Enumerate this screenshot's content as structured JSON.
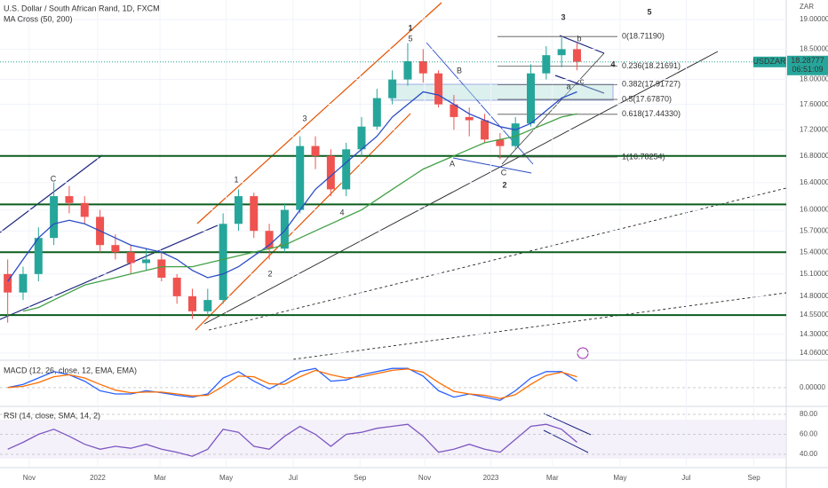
{
  "chart_data": [
    {
      "type": "candlestick",
      "title": "U.S. Dollar / South African Rand, 1D, FXCM",
      "indicator": "MA Cross (50, 200)",
      "currency": "ZAR",
      "symbol": "USDZAR",
      "last_price": 18.28777,
      "countdown": "06:51:09",
      "log_scale": true,
      "grid": true,
      "up_color": "#26a69a",
      "down_color": "#ef5350",
      "open": [
        15.1,
        14.85,
        15.1,
        15.6,
        16.2,
        16.1,
        15.9,
        15.5,
        15.4,
        15.25,
        15.3,
        15.05,
        14.8,
        14.6,
        14.75,
        15.8,
        16.2,
        15.7,
        15.45,
        16.0,
        16.95,
        16.8,
        16.3,
        16.9,
        17.25,
        17.7,
        18.0,
        18.3,
        18.1,
        17.6,
        17.4,
        17.35,
        17.05,
        16.95,
        17.3,
        18.1,
        18.4,
        18.5
      ],
      "high": [
        15.3,
        15.2,
        15.75,
        16.4,
        16.35,
        16.2,
        16.0,
        15.65,
        15.5,
        15.45,
        15.4,
        15.1,
        14.9,
        14.9,
        15.95,
        16.3,
        16.25,
        15.8,
        16.1,
        17.1,
        17.1,
        16.9,
        17.0,
        17.4,
        17.85,
        18.15,
        18.6,
        18.5,
        18.15,
        17.75,
        17.55,
        17.45,
        17.15,
        17.4,
        18.25,
        18.55,
        18.7,
        18.6
      ],
      "low": [
        14.45,
        14.75,
        15.0,
        15.5,
        15.95,
        15.8,
        15.4,
        15.3,
        15.1,
        15.15,
        15.0,
        14.7,
        14.5,
        14.55,
        14.7,
        15.7,
        15.6,
        15.3,
        15.4,
        15.95,
        16.6,
        16.2,
        16.2,
        16.8,
        17.2,
        17.6,
        17.9,
        17.95,
        17.55,
        17.2,
        17.1,
        17.0,
        16.75,
        16.9,
        17.25,
        18.0,
        18.2,
        18.15
      ],
      "close": [
        14.85,
        15.1,
        15.6,
        16.2,
        16.1,
        15.9,
        15.5,
        15.4,
        15.25,
        15.3,
        15.05,
        14.8,
        14.6,
        14.75,
        15.8,
        16.2,
        15.7,
        15.45,
        16.0,
        16.95,
        16.8,
        16.3,
        16.9,
        17.25,
        17.7,
        18.0,
        18.3,
        18.1,
        17.6,
        17.4,
        17.35,
        17.05,
        16.95,
        17.3,
        18.1,
        18.4,
        18.5,
        18.29
      ],
      "ma": [
        {
          "color": "#2a4cc5",
          "values": [
            15.0,
            15.3,
            15.6,
            15.8,
            15.85,
            15.8,
            15.7,
            15.6,
            15.5,
            15.45,
            15.4,
            15.3,
            15.15,
            15.05,
            15.1,
            15.2,
            15.35,
            15.5,
            15.7,
            16.0,
            16.3,
            16.5,
            16.7,
            16.9,
            17.1,
            17.4,
            17.6,
            17.8,
            17.75,
            17.6,
            17.45,
            17.35,
            17.25,
            17.2,
            17.3,
            17.5,
            17.7,
            17.8
          ]
        },
        {
          "color": "#43a047",
          "values": [
            null,
            14.6,
            14.65,
            14.75,
            14.85,
            14.95,
            15.0,
            15.05,
            15.1,
            15.15,
            15.2,
            15.2,
            15.2,
            15.25,
            15.3,
            15.35,
            15.4,
            15.45,
            15.5,
            15.6,
            15.7,
            15.8,
            15.9,
            16.0,
            16.15,
            16.3,
            16.45,
            16.6,
            16.7,
            16.8,
            16.9,
            17.0,
            17.05,
            17.1,
            17.2,
            17.3,
            17.4,
            17.45
          ]
        }
      ],
      "xlim": [
        -0.5,
        50.6
      ],
      "xticks": [
        {
          "value": 1.4,
          "label": "Nov"
        },
        {
          "value": 5.85,
          "label": "2022"
        },
        {
          "value": 9.9,
          "label": "Mar"
        },
        {
          "value": 14.2,
          "label": "May"
        },
        {
          "value": 18.55,
          "label": "Jul"
        },
        {
          "value": 22.9,
          "label": "Sep"
        },
        {
          "value": 27.1,
          "label": "Nov"
        },
        {
          "value": 31.4,
          "label": "2023"
        },
        {
          "value": 35.4,
          "label": "Mar"
        },
        {
          "value": 39.8,
          "label": "May"
        },
        {
          "value": 44.1,
          "label": "Jul"
        },
        {
          "value": 48.5,
          "label": "Sep"
        }
      ],
      "ylim": [
        13.98,
        19.34
      ],
      "yticks": [
        {
          "value": 19,
          "label": "19.00000"
        },
        {
          "value": 18.5,
          "label": "18.50000"
        },
        {
          "value": 18,
          "label": "18.00000"
        },
        {
          "value": 17.6,
          "label": "17.60000"
        },
        {
          "value": 17.2,
          "label": "17.20000"
        },
        {
          "value": 16.8,
          "label": "16.80000"
        },
        {
          "value": 16.4,
          "label": "16.40000"
        },
        {
          "value": 16,
          "label": "16.00000"
        },
        {
          "value": 15.7,
          "label": "15.70000"
        },
        {
          "value": 15.4,
          "label": "15.40000"
        },
        {
          "value": 15.1,
          "label": "15.10000"
        },
        {
          "value": 14.8,
          "label": "14.80000"
        },
        {
          "value": 14.55,
          "label": "14.55000"
        },
        {
          "value": 14.3,
          "label": "14.30000"
        },
        {
          "value": 14.06,
          "label": "14.06000"
        }
      ],
      "fib_levels": [
        {
          "value": 18.7119,
          "label": "0(18.71190)"
        },
        {
          "value": 18.21691,
          "label": "0.236(18.21691)"
        },
        {
          "value": 17.91727,
          "label": "0.382(17.91727)"
        },
        {
          "value": 17.6787,
          "label": "0.5(17.67870)"
        },
        {
          "value": 17.4433,
          "label": "0.618(17.44330)"
        },
        {
          "value": 16.78254,
          "label": "1(16.78254)"
        }
      ],
      "support_levels": {
        "color": "#0b5d1e",
        "values": [
          16.8,
          16.08,
          15.4,
          14.55
        ]
      },
      "wave_labels": [
        {
          "text": "1",
          "color": "#8b1a1a"
        },
        {
          "text": "2",
          "color": "#8b1a1a"
        },
        {
          "text": "3",
          "color": "#8b1a1a"
        },
        {
          "text": "4",
          "color": "#8b1a1a"
        },
        {
          "text": "5",
          "color": "#8b1a1a"
        },
        {
          "text": "1",
          "color": "#e65100"
        },
        {
          "text": "2",
          "color": "#e65100"
        },
        {
          "text": "3",
          "color": "#e65100"
        },
        {
          "text": "4",
          "color": "#e65100"
        },
        {
          "text": "5",
          "color": "#e65100"
        },
        {
          "text": "A",
          "color": "#2a4cc5"
        },
        {
          "text": "B",
          "color": "#2a4cc5"
        },
        {
          "text": "C",
          "color": "#2a4cc5"
        },
        {
          "text": "C",
          "color": "#2a4cc5"
        },
        {
          "text": "a",
          "color": "#2a4cc5"
        },
        {
          "text": "b",
          "color": "#2a4cc5"
        },
        {
          "text": "c",
          "color": "#2a4cc5"
        }
      ]
    },
    {
      "type": "line",
      "title": "MACD (12, 26, close, 12, EMA, EMA)",
      "series": [
        {
          "color": "#2962ff",
          "values": [
            0.0,
            0.05,
            0.15,
            0.25,
            0.2,
            0.1,
            -0.05,
            -0.1,
            -0.1,
            -0.05,
            -0.08,
            -0.12,
            -0.15,
            -0.1,
            0.15,
            0.25,
            0.1,
            -0.02,
            0.1,
            0.25,
            0.3,
            0.1,
            0.12,
            0.2,
            0.25,
            0.3,
            0.3,
            0.18,
            -0.05,
            -0.15,
            -0.1,
            -0.15,
            -0.2,
            -0.05,
            0.15,
            0.25,
            0.25,
            0.1
          ]
        },
        {
          "color": "#ff6d00",
          "values": [
            0.0,
            0.02,
            0.08,
            0.17,
            0.2,
            0.15,
            0.05,
            -0.04,
            -0.08,
            -0.07,
            -0.07,
            -0.1,
            -0.13,
            -0.12,
            0.02,
            0.18,
            0.17,
            0.06,
            0.05,
            0.17,
            0.27,
            0.2,
            0.15,
            0.17,
            0.22,
            0.27,
            0.29,
            0.24,
            0.08,
            -0.06,
            -0.1,
            -0.12,
            -0.17,
            -0.11,
            0.05,
            0.19,
            0.24,
            0.17
          ]
        }
      ],
      "ylim": [
        -0.28,
        0.4
      ],
      "yticks": [
        {
          "value": 0,
          "label": "0.00000"
        }
      ]
    },
    {
      "type": "line",
      "title": "RSI (14, close, SMA, 14, 2)",
      "series": [
        {
          "color": "#7e57c2",
          "values": [
            45,
            52,
            60,
            65,
            58,
            50,
            45,
            48,
            46,
            50,
            45,
            42,
            38,
            45,
            65,
            62,
            48,
            45,
            58,
            68,
            60,
            48,
            60,
            62,
            66,
            68,
            70,
            58,
            42,
            45,
            50,
            45,
            42,
            55,
            68,
            70,
            65,
            52
          ]
        }
      ],
      "ylim": [
        28.4,
        86.2
      ],
      "yticks": [
        {
          "value": 80,
          "label": "80.00"
        },
        {
          "value": 60,
          "label": "60.00"
        },
        {
          "value": 40,
          "label": "40.00"
        }
      ]
    }
  ]
}
